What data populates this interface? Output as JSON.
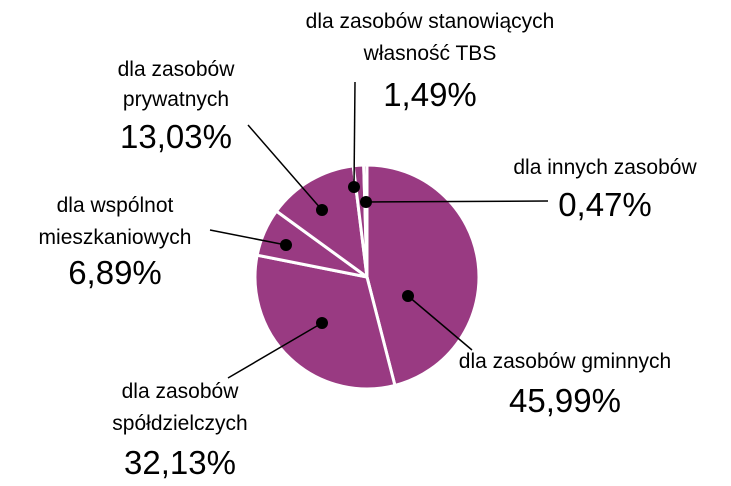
{
  "chart_data": {
    "type": "pie",
    "categories": [
      "dla zasobów gminnych",
      "dla zasobów spółdzielczych",
      "dla wspólnot mieszkaniowych",
      "dla zasobów prywatnych",
      "dla zasobów stanowiących własność TBS",
      "dla innych zasobów"
    ],
    "values": [
      45.99,
      32.13,
      6.89,
      13.03,
      1.49,
      0.47
    ],
    "value_labels": [
      "45,99%",
      "32,13%",
      "6,89%",
      "13,03%",
      "1,49%",
      "0,47%"
    ],
    "color": "#993a82"
  }
}
